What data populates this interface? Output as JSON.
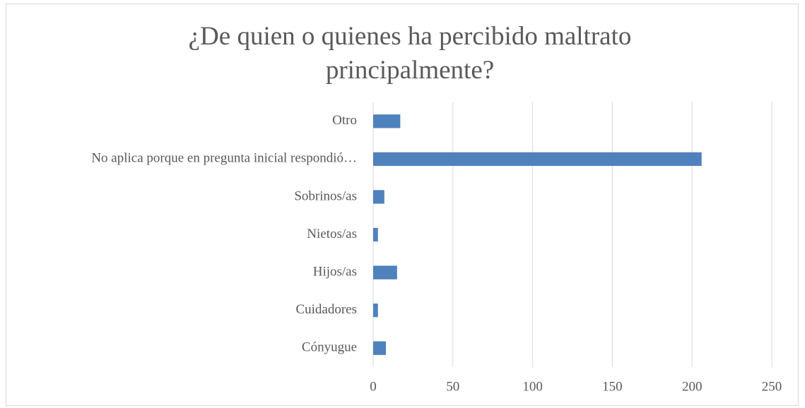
{
  "chart_data": {
    "type": "bar",
    "orientation": "horizontal",
    "title": "¿De quien o quienes ha percibido maltrato principalmente?",
    "categories": [
      "Otro",
      "No aplica porque en pregunta inicial respondió…",
      "Sobrinos/as",
      "Nietos/as",
      "Hijos/as",
      "Cuidadores",
      "Cónyugue"
    ],
    "values": [
      17,
      206,
      7,
      3,
      15,
      3,
      8
    ],
    "color": "#4f81bd",
    "xlim": [
      0,
      250
    ],
    "xticks": [
      0,
      50,
      100,
      150,
      200,
      250
    ],
    "grid": true
  }
}
